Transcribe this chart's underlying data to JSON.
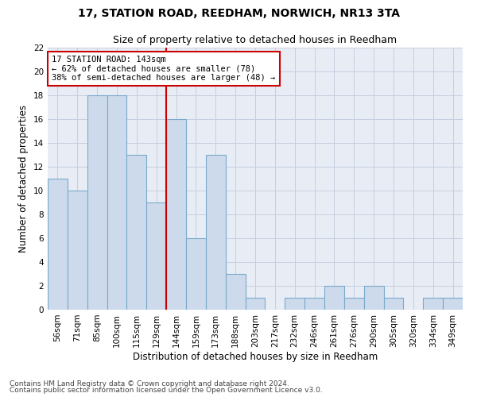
{
  "title1": "17, STATION ROAD, REEDHAM, NORWICH, NR13 3TA",
  "title2": "Size of property relative to detached houses in Reedham",
  "xlabel": "Distribution of detached houses by size in Reedham",
  "ylabel": "Number of detached properties",
  "footnote1": "Contains HM Land Registry data © Crown copyright and database right 2024.",
  "footnote2": "Contains public sector information licensed under the Open Government Licence v3.0.",
  "bar_labels": [
    "56sqm",
    "71sqm",
    "85sqm",
    "100sqm",
    "115sqm",
    "129sqm",
    "144sqm",
    "159sqm",
    "173sqm",
    "188sqm",
    "203sqm",
    "217sqm",
    "232sqm",
    "246sqm",
    "261sqm",
    "276sqm",
    "290sqm",
    "305sqm",
    "320sqm",
    "334sqm",
    "349sqm"
  ],
  "bar_values": [
    11,
    10,
    18,
    18,
    13,
    9,
    16,
    6,
    13,
    3,
    1,
    0,
    1,
    1,
    2,
    1,
    2,
    1,
    0,
    1,
    1
  ],
  "bar_color": "#ccdaeb",
  "bar_edge_color": "#7aaacb",
  "annotation_text": "17 STATION ROAD: 143sqm\n← 62% of detached houses are smaller (78)\n38% of semi-detached houses are larger (48) →",
  "annotation_box_color": "#ffffff",
  "annotation_box_edge": "#cc0000",
  "line_color": "#cc0000",
  "red_line_index": 6,
  "ylim": [
    0,
    22
  ],
  "yticks": [
    0,
    2,
    4,
    6,
    8,
    10,
    12,
    14,
    16,
    18,
    20,
    22
  ],
  "grid_color": "#c5cfe0",
  "bg_color": "#e8edf5",
  "title1_fontsize": 10,
  "title2_fontsize": 9,
  "xlabel_fontsize": 8.5,
  "ylabel_fontsize": 8.5,
  "tick_fontsize": 7.5,
  "annotation_fontsize": 7.5,
  "footnote_fontsize": 6.5
}
